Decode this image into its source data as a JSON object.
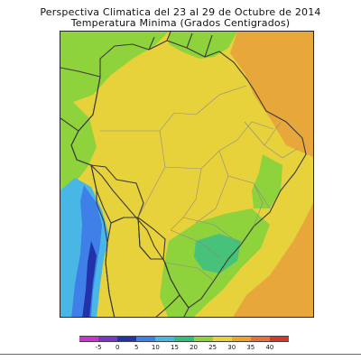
{
  "figure": {
    "title_line_1": "Perspectiva Climatica del 23 al 29 de Octubre de 2014",
    "title_line_2": "Temperatura Minima (Grados Centigrados)"
  },
  "legend": {
    "ticks": [
      "-5",
      "0",
      "5",
      "10",
      "15",
      "20",
      "25",
      "30",
      "35",
      "40"
    ],
    "classes": [
      {
        "from": null,
        "to": -5,
        "color": "#cc33cc"
      },
      {
        "from": -5,
        "to": 0,
        "color": "#7a33cc"
      },
      {
        "from": 0,
        "to": 5,
        "color": "#2233aa"
      },
      {
        "from": 5,
        "to": 10,
        "color": "#3f7fe8"
      },
      {
        "from": 10,
        "to": 15,
        "color": "#49b7e6"
      },
      {
        "from": 15,
        "to": 20,
        "color": "#2fc07a"
      },
      {
        "from": 20,
        "to": 25,
        "color": "#8ed23c"
      },
      {
        "from": 25,
        "to": 30,
        "color": "#e8d23c"
      },
      {
        "from": 30,
        "to": 35,
        "color": "#f0a32a"
      },
      {
        "from": 35,
        "to": 40,
        "color": "#e8703a"
      },
      {
        "from": 40,
        "to": null,
        "color": "#d43a2a"
      }
    ]
  },
  "map_colors": {
    "ocean_warm": "#e8a73a",
    "ocean_mid": "#e9cf3c",
    "land_main": "#e8d23c",
    "land_green": "#8ed23c",
    "land_mid_green": "#46c27a",
    "andes_blue": "#3f7fe8",
    "andes_light": "#49b7e6",
    "andes_dark": "#2233aa",
    "border_line": "#3a3a3a",
    "state_line": "#8a8a8a"
  }
}
